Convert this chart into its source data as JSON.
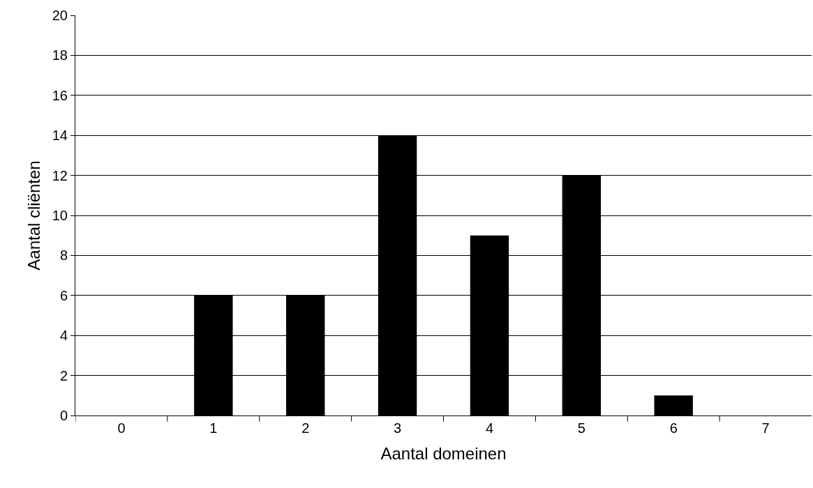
{
  "chart_data": {
    "type": "bar",
    "xlabel": "Aantal domeinen",
    "ylabel": "Aantal cliënten",
    "categories": [
      "0",
      "1",
      "2",
      "3",
      "4",
      "5",
      "6",
      "7"
    ],
    "values": [
      0,
      6,
      6,
      14,
      9,
      12,
      1,
      0
    ],
    "color": "#000000",
    "ylim": [
      0,
      20
    ],
    "yticks": [
      0,
      2,
      4,
      6,
      8,
      10,
      12,
      14,
      16,
      18,
      20
    ],
    "grid": "y"
  }
}
